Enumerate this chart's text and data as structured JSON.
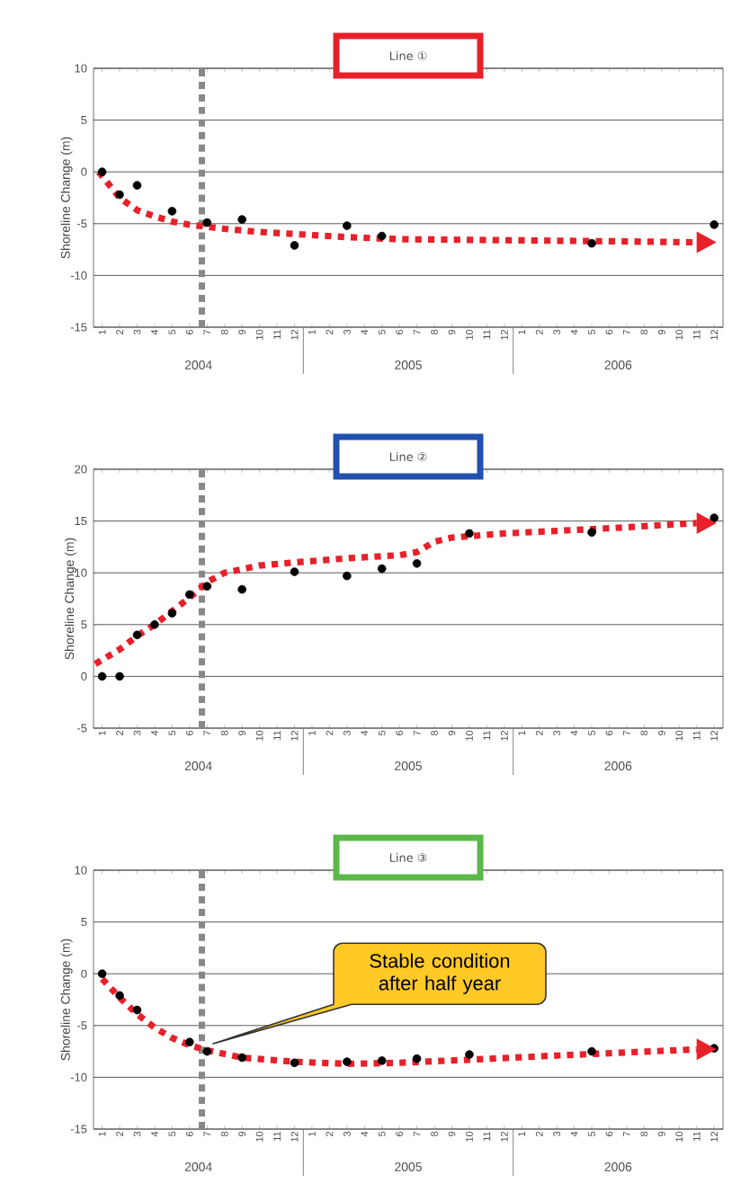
{
  "chart_data": [
    {
      "type": "scatter",
      "title": "Line ①",
      "ylabel": "Shoreline Change (m)",
      "xlim": [
        "2004-01-01",
        "2007-01-01"
      ],
      "ylim": [
        -15,
        10
      ],
      "yticks": [
        -15,
        -10,
        -5,
        0,
        5,
        10
      ],
      "xticks": [
        {
          "value": "2004-01-16",
          "label": "1"
        },
        {
          "value": "2004-02-16",
          "label": "2"
        },
        {
          "value": "2004-03-16",
          "label": "3"
        },
        {
          "value": "2004-04-16",
          "label": "4"
        },
        {
          "value": "2004-05-16",
          "label": "5"
        },
        {
          "value": "2004-06-16",
          "label": "6"
        },
        {
          "value": "2004-07-16",
          "label": "7"
        },
        {
          "value": "2004-08-16",
          "label": "8"
        },
        {
          "value": "2004-09-16",
          "label": "9"
        },
        {
          "value": "2004-10-16",
          "label": "10"
        },
        {
          "value": "2004-11-16",
          "label": "11"
        },
        {
          "value": "2004-12-16",
          "label": "12"
        },
        {
          "value": "2005-01-16",
          "label": "1"
        },
        {
          "value": "2005-02-16",
          "label": "2"
        },
        {
          "value": "2005-03-16",
          "label": "3"
        },
        {
          "value": "2005-04-16",
          "label": "4"
        },
        {
          "value": "2005-05-16",
          "label": "5"
        },
        {
          "value": "2005-06-16",
          "label": "6"
        },
        {
          "value": "2005-07-16",
          "label": "7"
        },
        {
          "value": "2005-08-16",
          "label": "8"
        },
        {
          "value": "2005-09-16",
          "label": "9"
        },
        {
          "value": "2005-10-16",
          "label": "10"
        },
        {
          "value": "2005-11-16",
          "label": "11"
        },
        {
          "value": "2005-12-16",
          "label": "12"
        },
        {
          "value": "2006-01-16",
          "label": "1"
        },
        {
          "value": "2006-02-16",
          "label": "2"
        },
        {
          "value": "2006-03-16",
          "label": "3"
        },
        {
          "value": "2006-04-16",
          "label": "4"
        },
        {
          "value": "2006-05-16",
          "label": "5"
        },
        {
          "value": "2006-06-16",
          "label": "6"
        },
        {
          "value": "2006-07-16",
          "label": "7"
        },
        {
          "value": "2006-08-16",
          "label": "8"
        },
        {
          "value": "2006-09-16",
          "label": "9"
        },
        {
          "value": "2006-10-16",
          "label": "10"
        },
        {
          "value": "2006-11-16",
          "label": "11"
        },
        {
          "value": "2006-12-16",
          "label": "12"
        }
      ],
      "grid": "y",
      "ref_lines": [
        {
          "axis": "x",
          "value": "2004-07-07",
          "color": "#888888",
          "line_style": "dashed"
        }
      ],
      "annotations": [
        "2004",
        "2005",
        "2006"
      ],
      "series": [
        {
          "color": "#000000",
          "marker": "circle",
          "x": [
            "2004-01-16",
            "2004-02-16",
            "2004-03-16",
            "2004-05-16",
            "2004-07-16",
            "2004-09-16",
            "2004-12-16",
            "2005-03-16",
            "2005-05-16",
            "2006-05-16",
            "2006-12-16"
          ],
          "values": [
            0,
            -2.2,
            -1.3,
            -3.8,
            -4.9,
            -4.6,
            -7.1,
            -5.2,
            -6.2,
            -6.9,
            -5.1
          ]
        },
        {
          "type": "line",
          "color": "#e8202a",
          "line_style": "dotted",
          "marker": "none",
          "x": [
            "2004-01-10",
            "2004-02-16",
            "2004-03-16",
            "2004-04-16",
            "2004-05-16",
            "2004-06-16",
            "2004-08-16",
            "2004-10-16",
            "2004-12-16",
            "2005-03-16",
            "2005-06-16",
            "2005-12-16",
            "2006-06-16",
            "2006-11-16"
          ],
          "values": [
            0,
            -2.5,
            -3.7,
            -4.3,
            -4.8,
            -5.1,
            -5.5,
            -5.8,
            -6.0,
            -6.3,
            -6.5,
            -6.6,
            -6.7,
            -6.8
          ]
        }
      ]
    },
    {
      "type": "scatter",
      "title": "Line ②",
      "ylabel": "Shoreline Change (m)",
      "xlim": [
        "2004-01-01",
        "2007-01-01"
      ],
      "ylim": [
        -5,
        20
      ],
      "yticks": [
        -5,
        0,
        5,
        10,
        15,
        20
      ],
      "xticks": [
        {
          "value": "2004-01-16",
          "label": "1"
        },
        {
          "value": "2004-02-16",
          "label": "2"
        },
        {
          "value": "2004-03-16",
          "label": "3"
        },
        {
          "value": "2004-04-16",
          "label": "4"
        },
        {
          "value": "2004-05-16",
          "label": "5"
        },
        {
          "value": "2004-06-16",
          "label": "6"
        },
        {
          "value": "2004-07-16",
          "label": "7"
        },
        {
          "value": "2004-08-16",
          "label": "8"
        },
        {
          "value": "2004-09-16",
          "label": "9"
        },
        {
          "value": "2004-10-16",
          "label": "10"
        },
        {
          "value": "2004-11-16",
          "label": "11"
        },
        {
          "value": "2004-12-16",
          "label": "12"
        },
        {
          "value": "2005-01-16",
          "label": "1"
        },
        {
          "value": "2005-02-16",
          "label": "2"
        },
        {
          "value": "2005-03-16",
          "label": "3"
        },
        {
          "value": "2005-04-16",
          "label": "4"
        },
        {
          "value": "2005-05-16",
          "label": "5"
        },
        {
          "value": "2005-06-16",
          "label": "6"
        },
        {
          "value": "2005-07-16",
          "label": "7"
        },
        {
          "value": "2005-08-16",
          "label": "8"
        },
        {
          "value": "2005-09-16",
          "label": "9"
        },
        {
          "value": "2005-10-16",
          "label": "10"
        },
        {
          "value": "2005-11-16",
          "label": "11"
        },
        {
          "value": "2005-12-16",
          "label": "12"
        },
        {
          "value": "2006-01-16",
          "label": "1"
        },
        {
          "value": "2006-02-16",
          "label": "2"
        },
        {
          "value": "2006-03-16",
          "label": "3"
        },
        {
          "value": "2006-04-16",
          "label": "4"
        },
        {
          "value": "2006-05-16",
          "label": "5"
        },
        {
          "value": "2006-06-16",
          "label": "6"
        },
        {
          "value": "2006-07-16",
          "label": "7"
        },
        {
          "value": "2006-08-16",
          "label": "8"
        },
        {
          "value": "2006-09-16",
          "label": "9"
        },
        {
          "value": "2006-10-16",
          "label": "10"
        },
        {
          "value": "2006-11-16",
          "label": "11"
        },
        {
          "value": "2006-12-16",
          "label": "12"
        }
      ],
      "grid": "y",
      "ref_lines": [
        {
          "axis": "x",
          "value": "2004-07-07",
          "color": "#888888",
          "line_style": "dashed"
        }
      ],
      "annotations": [
        "2004",
        "2005",
        "2006"
      ],
      "series": [
        {
          "color": "#000000",
          "marker": "circle",
          "x": [
            "2004-01-16",
            "2004-02-16",
            "2004-03-16",
            "2004-04-16",
            "2004-05-16",
            "2004-06-16",
            "2004-07-16",
            "2004-09-16",
            "2004-12-16",
            "2005-03-16",
            "2005-05-16",
            "2005-07-16",
            "2005-10-16",
            "2006-05-16",
            "2006-12-16"
          ],
          "values": [
            0,
            0,
            4.0,
            5.0,
            6.1,
            7.9,
            8.7,
            8.4,
            10.1,
            9.7,
            10.4,
            10.9,
            13.8,
            13.9,
            15.3
          ]
        },
        {
          "type": "line",
          "color": "#e8202a",
          "line_style": "dotted",
          "marker": "none",
          "x": [
            "2004-01-04",
            "2004-02-16",
            "2004-03-16",
            "2004-04-16",
            "2004-05-16",
            "2004-06-16",
            "2004-07-16",
            "2004-08-16",
            "2004-10-16",
            "2004-12-16",
            "2005-03-16",
            "2005-06-16",
            "2005-07-16",
            "2005-08-16",
            "2005-09-16",
            "2005-12-16",
            "2006-06-16",
            "2006-11-16"
          ],
          "values": [
            1.2,
            2.6,
            3.9,
            5.0,
            6.3,
            7.6,
            9.1,
            10.0,
            10.7,
            11.0,
            11.4,
            11.7,
            12.0,
            13.0,
            13.4,
            13.8,
            14.3,
            14.8
          ]
        }
      ]
    },
    {
      "type": "scatter",
      "title": "Line ③",
      "ylabel": "Shoreline Change (m)",
      "xlim": [
        "2004-01-01",
        "2007-01-01"
      ],
      "ylim": [
        -15,
        10
      ],
      "yticks": [
        -15,
        -10,
        -5,
        0,
        5,
        10
      ],
      "xticks": [
        {
          "value": "2004-01-16",
          "label": "1"
        },
        {
          "value": "2004-02-16",
          "label": "2"
        },
        {
          "value": "2004-03-16",
          "label": "3"
        },
        {
          "value": "2004-04-16",
          "label": "4"
        },
        {
          "value": "2004-05-16",
          "label": "5"
        },
        {
          "value": "2004-06-16",
          "label": "6"
        },
        {
          "value": "2004-07-16",
          "label": "7"
        },
        {
          "value": "2004-08-16",
          "label": "8"
        },
        {
          "value": "2004-09-16",
          "label": "9"
        },
        {
          "value": "2004-10-16",
          "label": "10"
        },
        {
          "value": "2004-11-16",
          "label": "11"
        },
        {
          "value": "2004-12-16",
          "label": "12"
        },
        {
          "value": "2005-01-16",
          "label": "1"
        },
        {
          "value": "2005-02-16",
          "label": "2"
        },
        {
          "value": "2005-03-16",
          "label": "3"
        },
        {
          "value": "2005-04-16",
          "label": "4"
        },
        {
          "value": "2005-05-16",
          "label": "5"
        },
        {
          "value": "2005-06-16",
          "label": "6"
        },
        {
          "value": "2005-07-16",
          "label": "7"
        },
        {
          "value": "2005-08-16",
          "label": "8"
        },
        {
          "value": "2005-09-16",
          "label": "9"
        },
        {
          "value": "2005-10-16",
          "label": "10"
        },
        {
          "value": "2005-11-16",
          "label": "11"
        },
        {
          "value": "2005-12-16",
          "label": "12"
        },
        {
          "value": "2006-01-16",
          "label": "1"
        },
        {
          "value": "2006-02-16",
          "label": "2"
        },
        {
          "value": "2006-03-16",
          "label": "3"
        },
        {
          "value": "2006-04-16",
          "label": "4"
        },
        {
          "value": "2006-05-16",
          "label": "5"
        },
        {
          "value": "2006-06-16",
          "label": "6"
        },
        {
          "value": "2006-07-16",
          "label": "7"
        },
        {
          "value": "2006-08-16",
          "label": "8"
        },
        {
          "value": "2006-09-16",
          "label": "9"
        },
        {
          "value": "2006-10-16",
          "label": "10"
        },
        {
          "value": "2006-11-16",
          "label": "11"
        },
        {
          "value": "2006-12-16",
          "label": "12"
        }
      ],
      "grid": "y",
      "ref_lines": [
        {
          "axis": "x",
          "value": "2004-07-07",
          "color": "#888888",
          "line_style": "dashed"
        }
      ],
      "annotations": [
        "2004",
        "2005",
        "2006",
        "Stable condition after half year"
      ],
      "series": [
        {
          "color": "#000000",
          "marker": "circle",
          "x": [
            "2004-01-16",
            "2004-02-16",
            "2004-03-16",
            "2004-06-16",
            "2004-07-16",
            "2004-09-16",
            "2004-12-16",
            "2005-03-16",
            "2005-05-16",
            "2005-07-16",
            "2005-10-16",
            "2006-05-16",
            "2006-12-16"
          ],
          "values": [
            0,
            -2.1,
            -3.5,
            -6.6,
            -7.5,
            -8.1,
            -8.6,
            -8.5,
            -8.4,
            -8.2,
            -7.8,
            -7.5,
            -7.2
          ]
        },
        {
          "type": "line",
          "color": "#e8202a",
          "line_style": "dotted",
          "marker": "none",
          "x": [
            "2004-01-16",
            "2004-02-16",
            "2004-03-16",
            "2004-04-16",
            "2004-05-16",
            "2004-06-16",
            "2004-07-16",
            "2004-09-16",
            "2004-12-16",
            "2005-03-16",
            "2005-06-16",
            "2005-10-16",
            "2006-03-16",
            "2006-07-16",
            "2006-11-16"
          ],
          "values": [
            -0.5,
            -2.3,
            -3.9,
            -5.2,
            -6.2,
            -6.9,
            -7.4,
            -8.1,
            -8.5,
            -8.7,
            -8.6,
            -8.3,
            -7.9,
            -7.6,
            -7.3
          ]
        }
      ]
    }
  ]
}
